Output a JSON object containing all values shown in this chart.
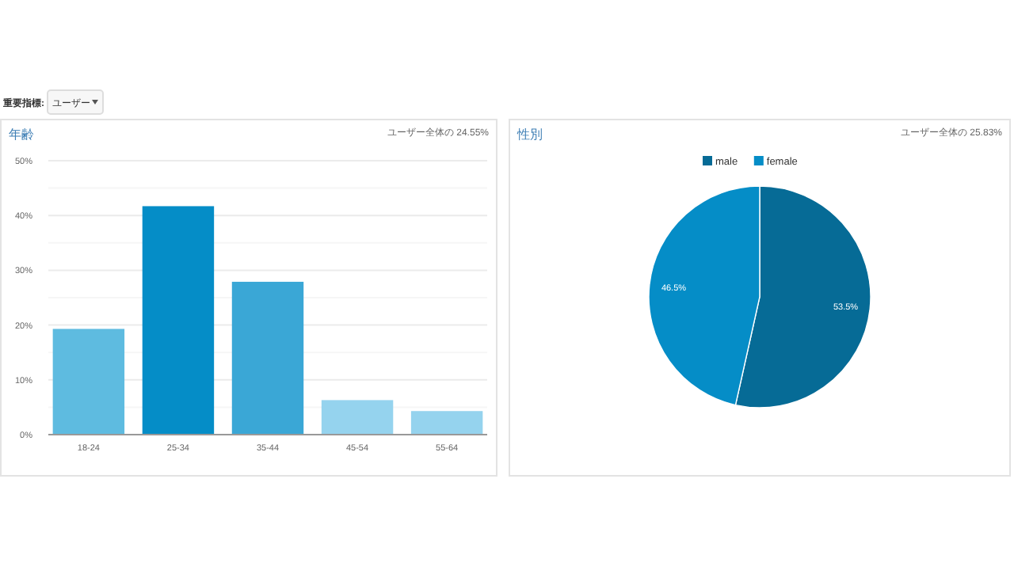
{
  "chart_data": [
    {
      "type": "bar",
      "title": "年齢",
      "subtitle": "ユーザー全体の 24.55%",
      "annotations": [
        "重要指標:",
        "ユーザー"
      ],
      "categories": [
        "18-24",
        "25-34",
        "35-44",
        "45-54",
        "55-64"
      ],
      "values": [
        19.3,
        41.7,
        27.9,
        6.3,
        4.3
      ],
      "colors": [
        "#5ebbe0",
        "#058dc7",
        "#3aa7d6",
        "#95d3ee",
        "#95d3ee"
      ],
      "ylim": [
        0,
        50
      ],
      "yticks": [
        {
          "value": 0,
          "label": "0%"
        },
        {
          "value": 5,
          "label": null
        },
        {
          "value": 10,
          "label": "10%"
        },
        {
          "value": 15,
          "label": null
        },
        {
          "value": 20,
          "label": "20%"
        },
        {
          "value": 25,
          "label": null
        },
        {
          "value": 30,
          "label": "30%"
        },
        {
          "value": 35,
          "label": null
        },
        {
          "value": 40,
          "label": "40%"
        },
        {
          "value": 45,
          "label": null
        },
        {
          "value": 50,
          "label": "50%"
        }
      ],
      "grid": "y"
    },
    {
      "type": "pie",
      "title": "性別",
      "subtitle": "ユーザー全体の 25.83%",
      "categories": [
        "male",
        "female"
      ],
      "values": [
        53.5,
        46.5
      ],
      "colors": [
        "#066b96",
        "#058dc7"
      ],
      "value_labels": [
        "53.5%",
        "46.5%"
      ],
      "legend": "top"
    }
  ]
}
